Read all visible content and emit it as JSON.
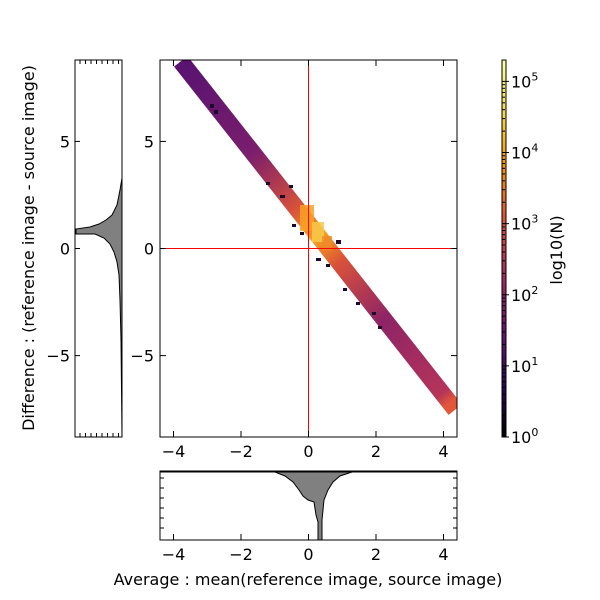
{
  "figure": {
    "xlabel": "Average :  mean(reference image, source image)",
    "ylabel": "Difference : (reference image - source image)",
    "colorbar_label": "log10(N)"
  },
  "chart_data": [
    {
      "type": "heatmap",
      "role": "main-2d-histogram",
      "xlim": [
        -4.4,
        4.4
      ],
      "ylim": [
        -8.8,
        8.8
      ],
      "xticks": [
        "−4",
        "−2",
        "0",
        "2",
        "4"
      ],
      "yticks": [
        "−5",
        "0",
        "5"
      ],
      "reference_lines": {
        "x": 0,
        "y": 0,
        "color": "#ff0000"
      },
      "band": {
        "from": [
          -3.7,
          8.4
        ],
        "to": [
          4.3,
          -7.4
        ],
        "description": "diagonal band of counts, highest near (0.3, 0.5)"
      },
      "grid": false
    },
    {
      "type": "area",
      "role": "y-marginal-histogram",
      "ylim": [
        -8.8,
        8.8
      ],
      "yticks": [
        "−5",
        "0",
        "5"
      ],
      "peak_y": 0.8,
      "color": "#808080"
    },
    {
      "type": "area",
      "role": "x-marginal-histogram",
      "xlim": [
        -4.4,
        4.4
      ],
      "xticks": [
        "−4",
        "−2",
        "0",
        "2",
        "4"
      ],
      "peak_x": 0.4,
      "color": "#808080"
    },
    {
      "type": "colorbar",
      "scale": "log",
      "range": [
        1,
        200000
      ],
      "tick_labels": [
        {
          "base": "10",
          "exp": "0"
        },
        {
          "base": "10",
          "exp": "1"
        },
        {
          "base": "10",
          "exp": "2"
        },
        {
          "base": "10",
          "exp": "3"
        },
        {
          "base": "10",
          "exp": "4"
        },
        {
          "base": "10",
          "exp": "5"
        }
      ],
      "colormap": [
        "#000004",
        "#2b0b57",
        "#6a176e",
        "#a52c60",
        "#dd513a",
        "#f98e09",
        "#f3d94a",
        "#fcffa4"
      ]
    }
  ]
}
